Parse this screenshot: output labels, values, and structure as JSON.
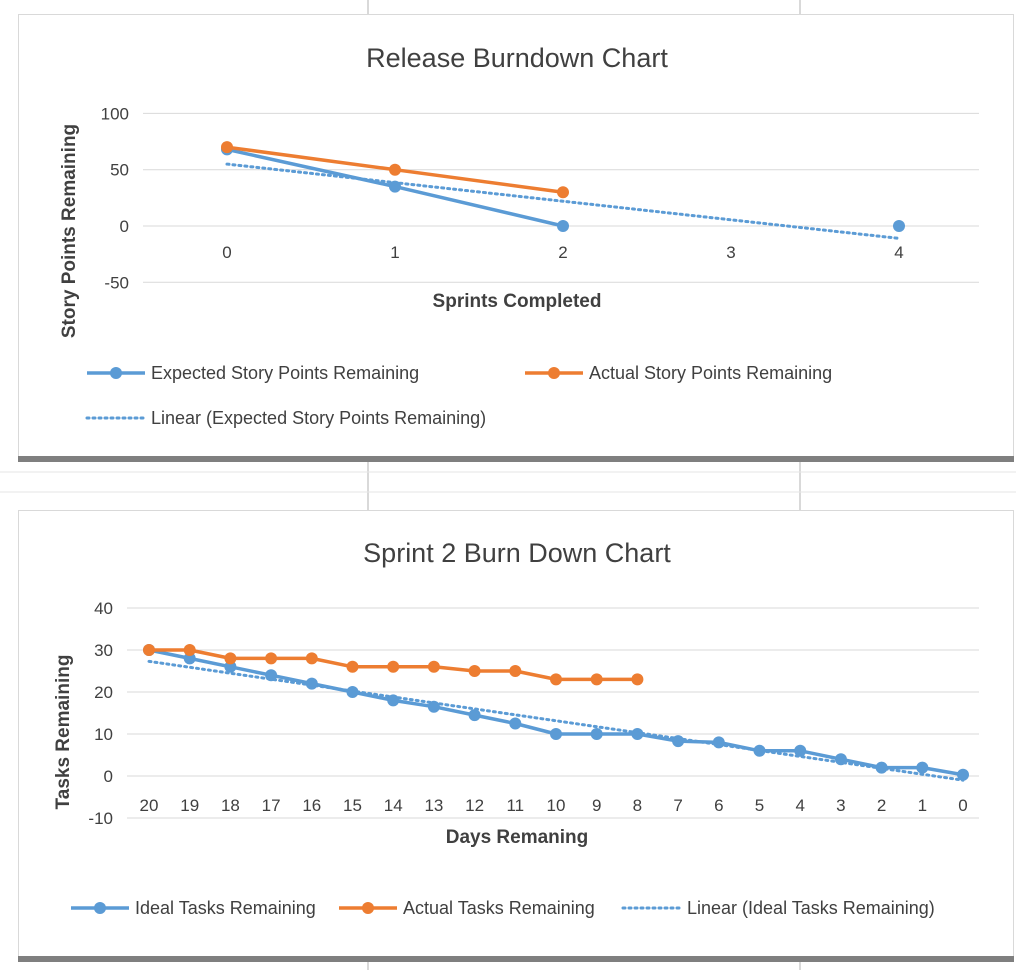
{
  "colors": {
    "blue": "#5b9bd5",
    "orange": "#ed7d31",
    "grid": "#d9d9d9",
    "text": "#404040"
  },
  "chart_data": [
    {
      "type": "line",
      "title": "Release Burndown Chart",
      "xlabel": "Sprints Completed",
      "ylabel": "Story Points Remaining",
      "x_ticks": [
        "0",
        "1",
        "2",
        "3",
        "4"
      ],
      "y_ticks": [
        "100",
        "50",
        "0",
        "-50"
      ],
      "ylim": [
        -50,
        100
      ],
      "grid": true,
      "legend_position": "bottom",
      "series": [
        {
          "name": "Expected Story Points Remaining",
          "color": "#5b9bd5",
          "style": "solid-marker",
          "x": [
            0,
            1,
            2,
            4
          ],
          "y": [
            68,
            35,
            0,
            0
          ],
          "segments": [
            [
              0,
              1,
              2
            ]
          ]
        },
        {
          "name": "Actual Story Points Remaining",
          "color": "#ed7d31",
          "style": "solid-marker",
          "x": [
            0,
            1,
            2
          ],
          "y": [
            70,
            50,
            30
          ],
          "segments": [
            [
              0,
              1,
              2
            ]
          ]
        },
        {
          "name": "Linear  (Expected Story Points Remaining)",
          "color": "#5b9bd5",
          "style": "dotted",
          "x": [
            0,
            4
          ],
          "y": [
            55,
            -11
          ]
        }
      ]
    },
    {
      "type": "line",
      "title": "Sprint 2 Burn Down Chart",
      "xlabel": "Days Remaning",
      "ylabel": "Tasks Remaining",
      "x_ticks": [
        "20",
        "19",
        "18",
        "17",
        "16",
        "15",
        "14",
        "13",
        "12",
        "11",
        "10",
        "9",
        "8",
        "7",
        "6",
        "5",
        "4",
        "3",
        "2",
        "1",
        "0"
      ],
      "y_ticks": [
        "40",
        "30",
        "20",
        "10",
        "0",
        "-10"
      ],
      "ylim": [
        -10,
        40
      ],
      "grid": true,
      "legend_position": "bottom",
      "series": [
        {
          "name": "Ideal Tasks Remaining",
          "color": "#5b9bd5",
          "style": "solid-marker",
          "x": [
            0,
            1,
            2,
            3,
            4,
            5,
            6,
            7,
            8,
            9,
            10,
            11,
            12,
            13,
            14,
            15,
            16,
            17,
            18,
            19,
            20
          ],
          "y": [
            30,
            28,
            26,
            24,
            22,
            20,
            18,
            16.5,
            14.5,
            12.5,
            10,
            10,
            10,
            8.3,
            8,
            6,
            6,
            4,
            2,
            2,
            0.3
          ]
        },
        {
          "name": "Actual Tasks Remaining",
          "color": "#ed7d31",
          "style": "solid-marker",
          "x": [
            0,
            1,
            2,
            3,
            4,
            5,
            6,
            7,
            8,
            9,
            10,
            11,
            12
          ],
          "y": [
            30,
            30,
            28,
            28,
            28,
            26,
            26,
            26,
            25,
            25,
            23,
            23,
            23
          ]
        },
        {
          "name": "Linear  (Ideal Tasks Remaining)",
          "color": "#5b9bd5",
          "style": "dotted",
          "x": [
            0,
            20
          ],
          "y": [
            27.3,
            -1
          ]
        }
      ]
    }
  ]
}
